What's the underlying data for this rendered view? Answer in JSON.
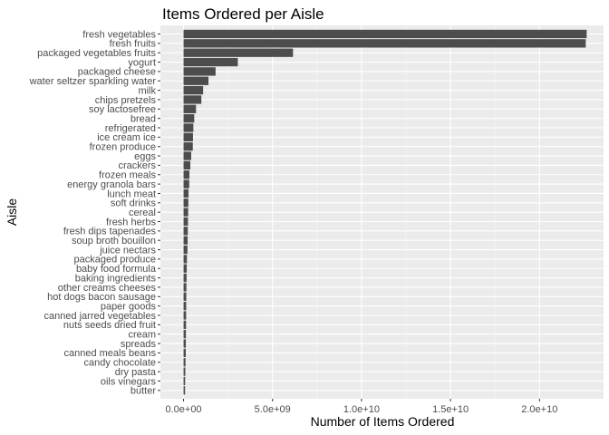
{
  "chart_data": {
    "type": "bar",
    "orientation": "horizontal",
    "title": "Items Ordered per Aisle",
    "xlabel": "Number of Items Ordered",
    "ylabel": "Aisle",
    "xlim": [
      -1300000000.0,
      23600000000.0
    ],
    "x_ticks": [
      0,
      5000000000,
      10000000000,
      15000000000,
      20000000000
    ],
    "x_tick_labels": [
      "0.0e+00",
      "5.0e+09",
      "1.0e+10",
      "1.5e+10",
      "2.0e+10"
    ],
    "grid": true,
    "legend": "none",
    "colors": {
      "bar": "#4d4d4d",
      "panel": "#ebebeb",
      "grid": "#ffffff"
    },
    "categories": [
      "fresh vegetables",
      "fresh fruits",
      "packaged vegetables fruits",
      "yogurt",
      "packaged cheese",
      "water seltzer sparkling water",
      "milk",
      "chips pretzels",
      "soy lactosefree",
      "bread",
      "refrigerated",
      "ice cream ice",
      "frozen produce",
      "eggs",
      "crackers",
      "frozen meals",
      "energy granola bars",
      "lunch meat",
      "soft drinks",
      "cereal",
      "fresh herbs",
      "fresh dips tapenades",
      "soup broth bouillon",
      "juice nectars",
      "packaged produce",
      "baby food formula",
      "baking ingredients",
      "other creams cheeses",
      "hot dogs bacon sausage",
      "paper goods",
      "canned jarred vegetables",
      "nuts seeds dried fruit",
      "cream",
      "spreads",
      "canned meals beans",
      "candy chocolate",
      "dry pasta",
      "oils vinegars",
      "butter"
    ],
    "values": [
      22650000000,
      22600000000,
      6150000000,
      3050000000,
      1800000000,
      1400000000,
      1100000000,
      1000000000,
      700000000,
      600000000,
      550000000,
      530000000,
      520000000,
      430000000,
      380000000,
      330000000,
      320000000,
      280000000,
      270000000,
      260000000,
      250000000,
      240000000,
      230000000,
      220000000,
      190000000,
      180000000,
      170000000,
      160000000,
      155000000,
      150000000,
      145000000,
      140000000,
      135000000,
      130000000,
      125000000,
      110000000,
      100000000,
      90000000,
      85000000
    ]
  }
}
